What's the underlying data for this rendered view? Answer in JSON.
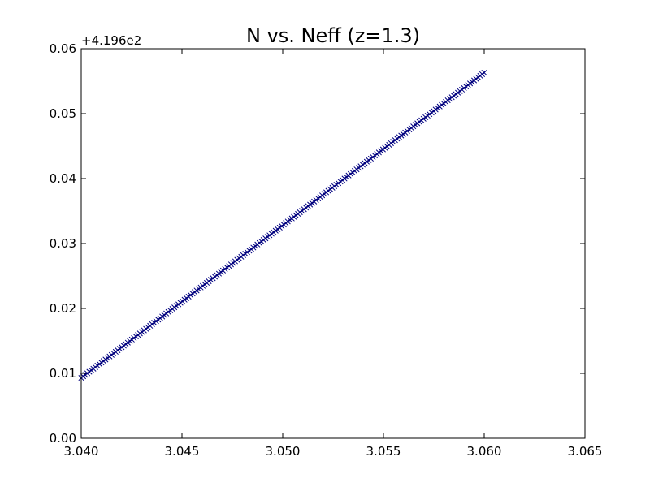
{
  "chart_data": {
    "type": "line",
    "title": "N vs. Neff (z=1.3)",
    "xlabel": "",
    "ylabel": "",
    "y_offset_label": "+4.196e2",
    "xlim": [
      3.04,
      3.065
    ],
    "ylim": [
      0.0,
      0.06
    ],
    "x_ticks": [
      "3.040",
      "3.045",
      "3.050",
      "3.055",
      "3.060",
      "3.065"
    ],
    "y_ticks": [
      "0.00",
      "0.01",
      "0.02",
      "0.03",
      "0.04",
      "0.05",
      "0.06"
    ],
    "grid": false,
    "series": [
      {
        "color": "#00007f",
        "marker": "x",
        "x_range": [
          3.04,
          3.06
        ],
        "y_range": [
          0.0093,
          0.0563
        ],
        "num_points": 200
      }
    ]
  }
}
